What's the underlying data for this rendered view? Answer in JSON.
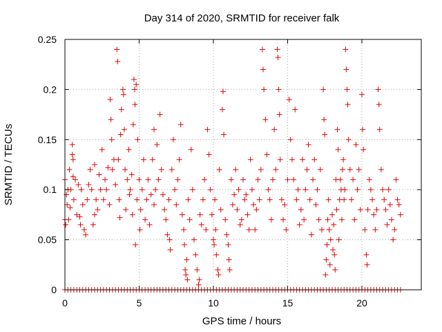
{
  "chart_data": {
    "type": "scatter",
    "title": "Day 314 of 2020, SRMTID for receiver falk",
    "xlabel": "GPS time / hours",
    "ylabel": "SRMTID / TECUs",
    "xlim": [
      0,
      24
    ],
    "ylim": [
      0,
      0.25
    ],
    "x_ticks": [
      0,
      5,
      10,
      15,
      20
    ],
    "x_tick_labels": [
      "0",
      "5",
      "10",
      "15",
      "20"
    ],
    "y_ticks": [
      0,
      0.05,
      0.1,
      0.15,
      0.2,
      0.25
    ],
    "y_tick_labels": [
      "0",
      "0.05",
      "0.1",
      "0.15",
      "0.2",
      "0.25"
    ],
    "grid": true,
    "legend": "none",
    "marker": "+",
    "series": [
      {
        "name": "SRMTID",
        "color": "#e00000",
        "points": [
          [
            0.0,
            0.11
          ],
          [
            0.0,
            0.07
          ],
          [
            0.05,
            0.065
          ],
          [
            0.1,
            0.095
          ],
          [
            0.15,
            0.085
          ],
          [
            0.2,
            0.1
          ],
          [
            0.25,
            0.07
          ],
          [
            0.3,
            0.12
          ],
          [
            0.35,
            0.082
          ],
          [
            0.4,
            0.1
          ],
          [
            0.5,
            0.145
          ],
          [
            0.5,
            0.135
          ],
          [
            0.55,
            0.13
          ],
          [
            0.55,
            0.113
          ],
          [
            0.6,
            0.09
          ],
          [
            0.7,
            0.11
          ],
          [
            0.8,
            0.075
          ],
          [
            0.9,
            0.105
          ],
          [
            1.0,
            0.073
          ],
          [
            1.05,
            0.065
          ],
          [
            1.1,
            0.1
          ],
          [
            1.2,
            0.085
          ],
          [
            1.3,
            0.06
          ],
          [
            1.4,
            0.055
          ],
          [
            1.5,
            0.09
          ],
          [
            1.6,
            0.105
          ],
          [
            1.7,
            0.12
          ],
          [
            1.8,
            0.1
          ],
          [
            1.9,
            0.065
          ],
          [
            2.0,
            0.125
          ],
          [
            2.0,
            0.075
          ],
          [
            2.1,
            0.09
          ],
          [
            2.2,
            0.08
          ],
          [
            2.3,
            0.115
          ],
          [
            2.4,
            0.1
          ],
          [
            2.5,
            0.14
          ],
          [
            2.6,
            0.09
          ],
          [
            2.7,
            0.11
          ],
          [
            2.8,
            0.1
          ],
          [
            2.9,
            0.122
          ],
          [
            3.0,
            0.085
          ],
          [
            3.05,
            0.19
          ],
          [
            3.1,
            0.17
          ],
          [
            3.15,
            0.15
          ],
          [
            3.2,
            0.12
          ],
          [
            3.3,
            0.13
          ],
          [
            3.4,
            0.105
          ],
          [
            3.5,
            0.24
          ],
          [
            3.55,
            0.228
          ],
          [
            3.6,
            0.13
          ],
          [
            3.65,
            0.09
          ],
          [
            3.7,
            0.072
          ],
          [
            3.75,
            0.155
          ],
          [
            3.8,
            0.18
          ],
          [
            3.9,
            0.2
          ],
          [
            3.95,
            0.195
          ],
          [
            4.0,
            0.16
          ],
          [
            4.05,
            0.12
          ],
          [
            4.1,
            0.08
          ],
          [
            4.2,
            0.11
          ],
          [
            4.3,
            0.14
          ],
          [
            4.35,
            0.095
          ],
          [
            4.4,
            0.1
          ],
          [
            4.5,
            0.115
          ],
          [
            4.55,
            0.075
          ],
          [
            4.6,
            0.165
          ],
          [
            4.65,
            0.21
          ],
          [
            4.7,
            0.2
          ],
          [
            4.72,
            0.185
          ],
          [
            4.75,
            0.045
          ],
          [
            4.8,
            0.205
          ],
          [
            4.85,
            0.09
          ],
          [
            4.9,
            0.15
          ],
          [
            5.0,
            0.11
          ],
          [
            5.05,
            0.06
          ],
          [
            5.1,
            0.08
          ],
          [
            5.2,
            0.1
          ],
          [
            5.3,
            0.13
          ],
          [
            5.4,
            0.07
          ],
          [
            5.5,
            0.09
          ],
          [
            5.6,
            0.11
          ],
          [
            5.7,
            0.065
          ],
          [
            5.8,
            0.095
          ],
          [
            5.9,
            0.13
          ],
          [
            6.0,
            0.085
          ],
          [
            6.0,
            0.16
          ],
          [
            6.1,
            0.1
          ],
          [
            6.2,
            0.145
          ],
          [
            6.3,
            0.11
          ],
          [
            6.4,
            0.175
          ],
          [
            6.5,
            0.12
          ],
          [
            6.6,
            0.095
          ],
          [
            6.7,
            0.08
          ],
          [
            6.8,
            0.07
          ],
          [
            6.9,
            0.055
          ],
          [
            7.0,
            0.09
          ],
          [
            7.05,
            0.05
          ],
          [
            7.1,
            0.04
          ],
          [
            7.2,
            0.12
          ],
          [
            7.3,
            0.15
          ],
          [
            7.4,
            0.1
          ],
          [
            7.5,
            0.085
          ],
          [
            7.6,
            0.11
          ],
          [
            7.7,
            0.13
          ],
          [
            7.8,
            0.165
          ],
          [
            7.9,
            0.075
          ],
          [
            8.0,
            0.06
          ],
          [
            8.05,
            0.045
          ],
          [
            8.1,
            0.02
          ],
          [
            8.15,
            0.015
          ],
          [
            8.2,
            0.03
          ],
          [
            8.25,
            0.01
          ],
          [
            8.3,
            0.09
          ],
          [
            8.4,
            0.07
          ],
          [
            8.5,
            0.14
          ],
          [
            8.6,
            0.1
          ],
          [
            8.7,
            0.05
          ],
          [
            8.8,
            0.035
          ],
          [
            8.9,
            0.02
          ],
          [
            9.0,
            0.005
          ],
          [
            9.05,
            0.01
          ],
          [
            9.1,
            0.075
          ],
          [
            9.2,
            0.065
          ],
          [
            9.3,
            0.09
          ],
          [
            9.4,
            0.11
          ],
          [
            9.5,
            0.06
          ],
          [
            9.6,
            0.16
          ],
          [
            9.7,
            0.135
          ],
          [
            9.8,
            0.1
          ],
          [
            9.9,
            0.075
          ],
          [
            10.0,
            0.05
          ],
          [
            10.05,
            0.045
          ],
          [
            10.1,
            0.09
          ],
          [
            10.15,
            0.06
          ],
          [
            10.2,
            0.035
          ],
          [
            10.3,
            0.02
          ],
          [
            10.35,
            0.015
          ],
          [
            10.4,
            0.12
          ],
          [
            10.5,
            0.08
          ],
          [
            10.6,
            0.18
          ],
          [
            10.65,
            0.198
          ],
          [
            10.7,
            0.155
          ],
          [
            10.8,
            0.07
          ],
          [
            10.9,
            0.055
          ],
          [
            11.0,
            0.045
          ],
          [
            11.05,
            0.03
          ],
          [
            11.1,
            0.02
          ],
          [
            11.2,
            0.11
          ],
          [
            11.3,
            0.085
          ],
          [
            11.4,
            0.095
          ],
          [
            11.5,
            0.12
          ],
          [
            11.6,
            0.08
          ],
          [
            11.7,
            0.1
          ],
          [
            11.8,
            0.065
          ],
          [
            11.9,
            0.07
          ],
          [
            12.0,
            0.11
          ],
          [
            12.1,
            0.09
          ],
          [
            12.2,
            0.095
          ],
          [
            12.3,
            0.075
          ],
          [
            12.4,
            0.06
          ],
          [
            12.5,
            0.13
          ],
          [
            12.6,
            0.1
          ],
          [
            12.7,
            0.085
          ],
          [
            12.8,
            0.06
          ],
          [
            12.9,
            0.08
          ],
          [
            13.0,
            0.11
          ],
          [
            13.1,
            0.09
          ],
          [
            13.2,
            0.12
          ],
          [
            13.3,
            0.24
          ],
          [
            13.35,
            0.22
          ],
          [
            13.4,
            0.2
          ],
          [
            13.5,
            0.17
          ],
          [
            13.6,
            0.135
          ],
          [
            13.7,
            0.1
          ],
          [
            13.8,
            0.09
          ],
          [
            13.9,
            0.07
          ],
          [
            14.0,
            0.11
          ],
          [
            14.1,
            0.16
          ],
          [
            14.2,
            0.12
          ],
          [
            14.3,
            0.24
          ],
          [
            14.35,
            0.232
          ],
          [
            14.4,
            0.2
          ],
          [
            14.45,
            0.175
          ],
          [
            14.5,
            0.13
          ],
          [
            14.6,
            0.09
          ],
          [
            14.7,
            0.07
          ],
          [
            14.8,
            0.085
          ],
          [
            14.9,
            0.06
          ],
          [
            15.0,
            0.11
          ],
          [
            15.1,
            0.19
          ],
          [
            15.2,
            0.15
          ],
          [
            15.3,
            0.13
          ],
          [
            15.4,
            0.11
          ],
          [
            15.5,
            0.18
          ],
          [
            15.6,
            0.09
          ],
          [
            15.7,
            0.1
          ],
          [
            15.8,
            0.065
          ],
          [
            15.9,
            0.08
          ],
          [
            16.0,
            0.13
          ],
          [
            16.1,
            0.07
          ],
          [
            16.2,
            0.1
          ],
          [
            16.3,
            0.12
          ],
          [
            16.4,
            0.145
          ],
          [
            16.5,
            0.09
          ],
          [
            16.6,
            0.055
          ],
          [
            16.7,
            0.11
          ],
          [
            16.8,
            0.13
          ],
          [
            16.9,
            0.085
          ],
          [
            17.0,
            0.1
          ],
          [
            17.1,
            0.07
          ],
          [
            17.2,
            0.12
          ],
          [
            17.3,
            0.06
          ],
          [
            17.4,
            0.2
          ],
          [
            17.45,
            0.17
          ],
          [
            17.5,
            0.155
          ],
          [
            17.55,
            0.015
          ],
          [
            17.6,
            0.03
          ],
          [
            17.65,
            0.045
          ],
          [
            17.7,
            0.07
          ],
          [
            17.75,
            0.09
          ],
          [
            17.8,
            0.06
          ],
          [
            17.85,
            0.025
          ],
          [
            17.9,
            0.05
          ],
          [
            18.0,
            0.075
          ],
          [
            18.05,
            0.04
          ],
          [
            18.1,
            0.065
          ],
          [
            18.15,
            0.035
          ],
          [
            18.2,
            0.02
          ],
          [
            18.25,
            0.11
          ],
          [
            18.3,
            0.08
          ],
          [
            18.35,
            0.16
          ],
          [
            18.4,
            0.14
          ],
          [
            18.45,
            0.05
          ],
          [
            18.5,
            0.09
          ],
          [
            18.55,
            0.11
          ],
          [
            18.6,
            0.1
          ],
          [
            18.65,
            0.07
          ],
          [
            18.7,
            0.12
          ],
          [
            18.75,
            0.13
          ],
          [
            18.8,
            0.09
          ],
          [
            18.85,
            0.1
          ],
          [
            18.9,
            0.24
          ],
          [
            18.95,
            0.22
          ],
          [
            19.0,
            0.2
          ],
          [
            19.05,
            0.185
          ],
          [
            19.1,
            0.15
          ],
          [
            19.2,
            0.12
          ],
          [
            19.3,
            0.09
          ],
          [
            19.4,
            0.11
          ],
          [
            19.5,
            0.07
          ],
          [
            19.6,
            0.145
          ],
          [
            19.7,
            0.1
          ],
          [
            19.8,
            0.12
          ],
          [
            19.9,
            0.08
          ],
          [
            20.0,
            0.195
          ],
          [
            20.05,
            0.16
          ],
          [
            20.1,
            0.14
          ],
          [
            20.2,
            0.06
          ],
          [
            20.3,
            0.035
          ],
          [
            20.35,
            0.025
          ],
          [
            20.4,
            0.08
          ],
          [
            20.5,
            0.11
          ],
          [
            20.6,
            0.1
          ],
          [
            20.7,
            0.09
          ],
          [
            20.8,
            0.075
          ],
          [
            20.9,
            0.06
          ],
          [
            21.0,
            0.08
          ],
          [
            21.1,
            0.2
          ],
          [
            21.15,
            0.185
          ],
          [
            21.2,
            0.16
          ],
          [
            21.3,
            0.12
          ],
          [
            21.4,
            0.1
          ],
          [
            21.5,
            0.09
          ],
          [
            21.6,
            0.08
          ],
          [
            21.7,
            0.065
          ],
          [
            21.8,
            0.1
          ],
          [
            21.9,
            0.085
          ],
          [
            22.0,
            0.07
          ],
          [
            22.1,
            0.05
          ],
          [
            22.2,
            0.06
          ],
          [
            22.3,
            0.11
          ],
          [
            22.4,
            0.09
          ],
          [
            22.5,
            0.085
          ],
          [
            22.6,
            0.075
          ]
        ],
        "zero_points_x": [
          0.0,
          0.2,
          0.4,
          0.6,
          0.8,
          1.0,
          1.2,
          1.4,
          1.6,
          1.8,
          2.0,
          2.2,
          2.4,
          2.6,
          2.8,
          3.0,
          3.2,
          3.4,
          3.6,
          3.8,
          4.0,
          4.2,
          4.4,
          4.6,
          4.8,
          5.0,
          5.2,
          5.4,
          5.6,
          5.8,
          6.0,
          6.2,
          6.4,
          6.6,
          6.8,
          7.0,
          7.2,
          7.4,
          7.6,
          7.8,
          8.0,
          8.2,
          8.4,
          8.6,
          8.8,
          9.0,
          9.2,
          9.4,
          9.6,
          9.8,
          10.0,
          10.2,
          10.4,
          10.6,
          10.8,
          11.0,
          11.2,
          11.4,
          11.6,
          11.8,
          12.0,
          12.2,
          12.4,
          12.6,
          12.8,
          13.0,
          13.2,
          13.4,
          13.6,
          13.8,
          14.0,
          14.2,
          14.4,
          14.6,
          14.8,
          15.0,
          15.2,
          15.4,
          15.6,
          15.8,
          16.0,
          16.2,
          16.4,
          16.6,
          16.8,
          17.0,
          17.2,
          17.4,
          17.6,
          17.8,
          18.0,
          18.2,
          18.4,
          18.6,
          18.8,
          19.0,
          19.2,
          19.4,
          19.6,
          19.8,
          20.0,
          20.2,
          20.4,
          20.6,
          20.8,
          21.0,
          21.2,
          21.4,
          21.6,
          21.8,
          22.0,
          22.2,
          22.4,
          22.6
        ]
      }
    ]
  }
}
